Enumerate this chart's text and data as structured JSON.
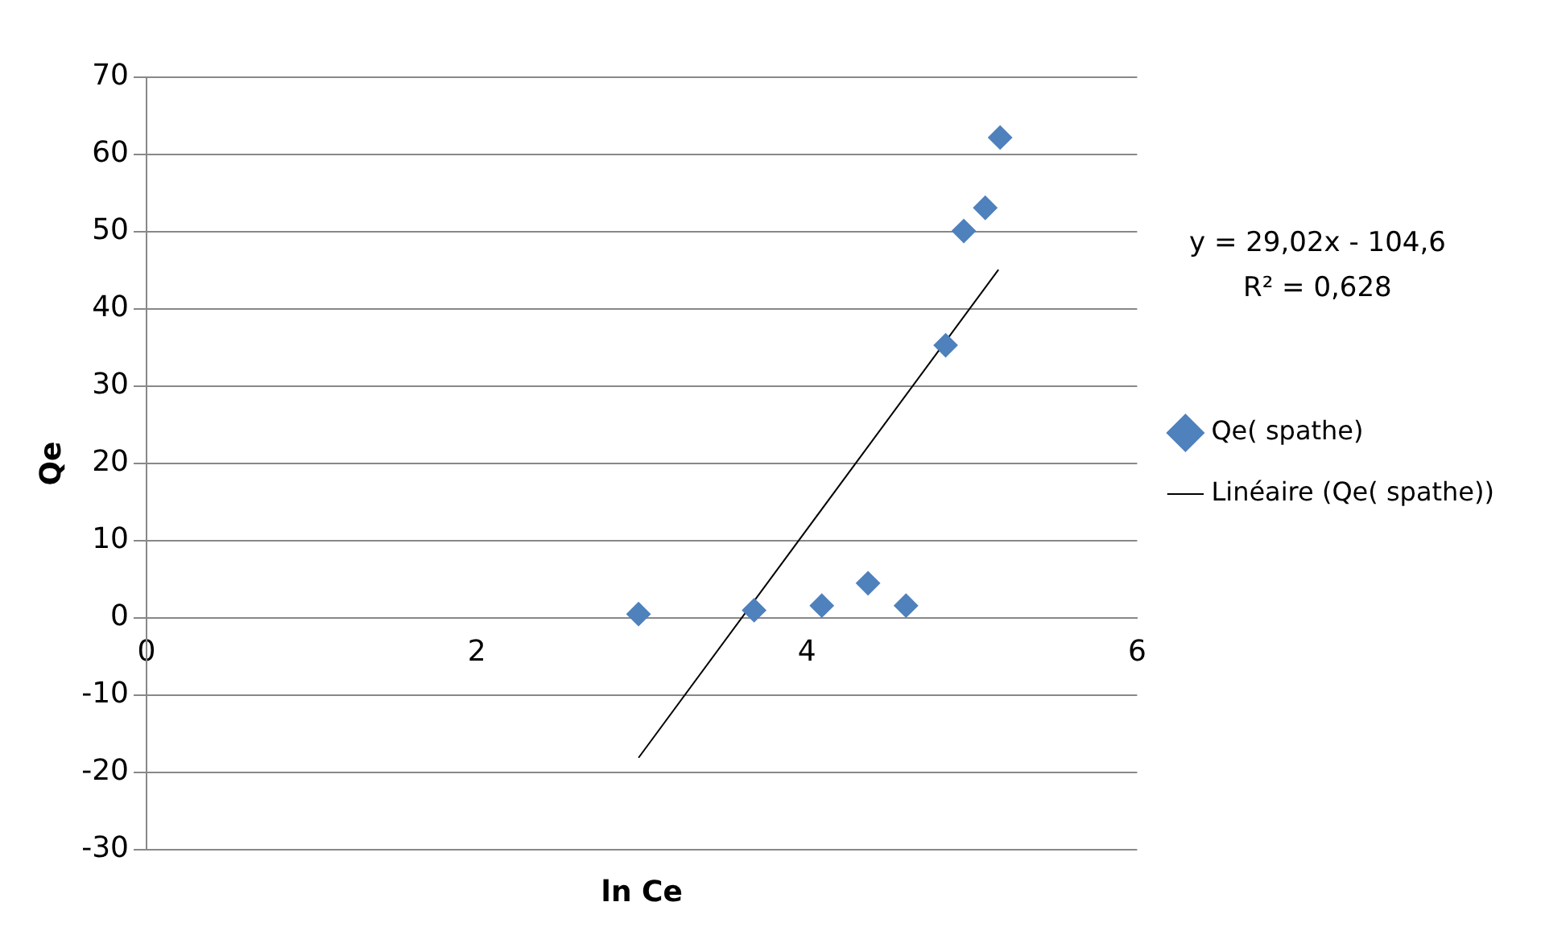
{
  "chart_data": {
    "type": "scatter",
    "xlabel": "ln Ce",
    "ylabel": "Qe",
    "xlim": [
      0,
      6
    ],
    "xticks": [
      0,
      2,
      4,
      6
    ],
    "ylim": [
      -30,
      70
    ],
    "yticks": [
      -30,
      -20,
      -10,
      0,
      10,
      20,
      30,
      40,
      50,
      60,
      70
    ],
    "grid": "y",
    "legend": "right",
    "marker": "diamond",
    "annotations": [
      "y = 29,02x - 104,6",
      "R² = 0,628"
    ],
    "series": [
      {
        "name": "Qe( spathe)",
        "color": "#4f81bd",
        "x": [
          2.98,
          3.68,
          4.09,
          4.37,
          4.6,
          4.84,
          4.95,
          5.08,
          5.17
        ],
        "values": [
          0.5,
          1,
          1.6,
          4.5,
          1.6,
          35.3,
          50.1,
          53.1,
          62.2
        ]
      },
      {
        "name": "Linéaire (Qe( spathe))",
        "type": "line",
        "marker": "none",
        "line_style": "solid",
        "color": "#000000",
        "x": [
          2.98,
          5.16
        ],
        "values": [
          -18.1,
          45.1
        ]
      }
    ]
  }
}
